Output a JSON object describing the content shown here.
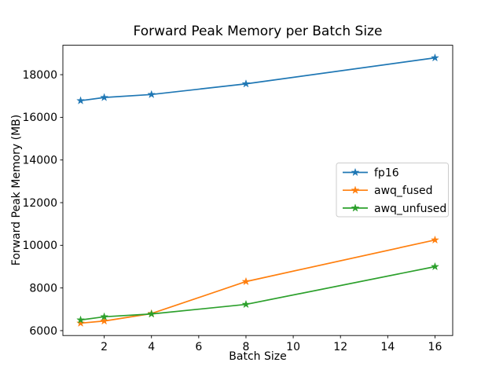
{
  "chart_data": {
    "type": "line",
    "title": "Forward Peak Memory per Batch Size",
    "xlabel": "Batch Size",
    "ylabel": "Forward Peak Memory (MB)",
    "x": [
      1,
      2,
      4,
      8,
      16
    ],
    "series": [
      {
        "name": "fp16",
        "color": "#1f77b4",
        "values": [
          16780,
          16930,
          17070,
          17570,
          18790
        ]
      },
      {
        "name": "awq_fused",
        "color": "#ff7f0e",
        "values": [
          6350,
          6450,
          6800,
          8300,
          10250
        ]
      },
      {
        "name": "awq_unfused",
        "color": "#2ca02c",
        "values": [
          6500,
          6650,
          6780,
          7230,
          9000
        ]
      }
    ],
    "xticks": [
      2,
      4,
      6,
      8,
      10,
      12,
      14,
      16
    ],
    "yticks": [
      6000,
      8000,
      10000,
      12000,
      14000,
      16000,
      18000
    ],
    "xlim": [
      0.25,
      16.75
    ],
    "ylim": [
      5770,
      19380
    ],
    "marker": "star",
    "grid": false,
    "legend": {
      "position": "center-right",
      "entries": [
        "fp16",
        "awq_fused",
        "awq_unfused"
      ]
    },
    "axis_color": "#000000",
    "legend_border_color": "#cccccc"
  }
}
